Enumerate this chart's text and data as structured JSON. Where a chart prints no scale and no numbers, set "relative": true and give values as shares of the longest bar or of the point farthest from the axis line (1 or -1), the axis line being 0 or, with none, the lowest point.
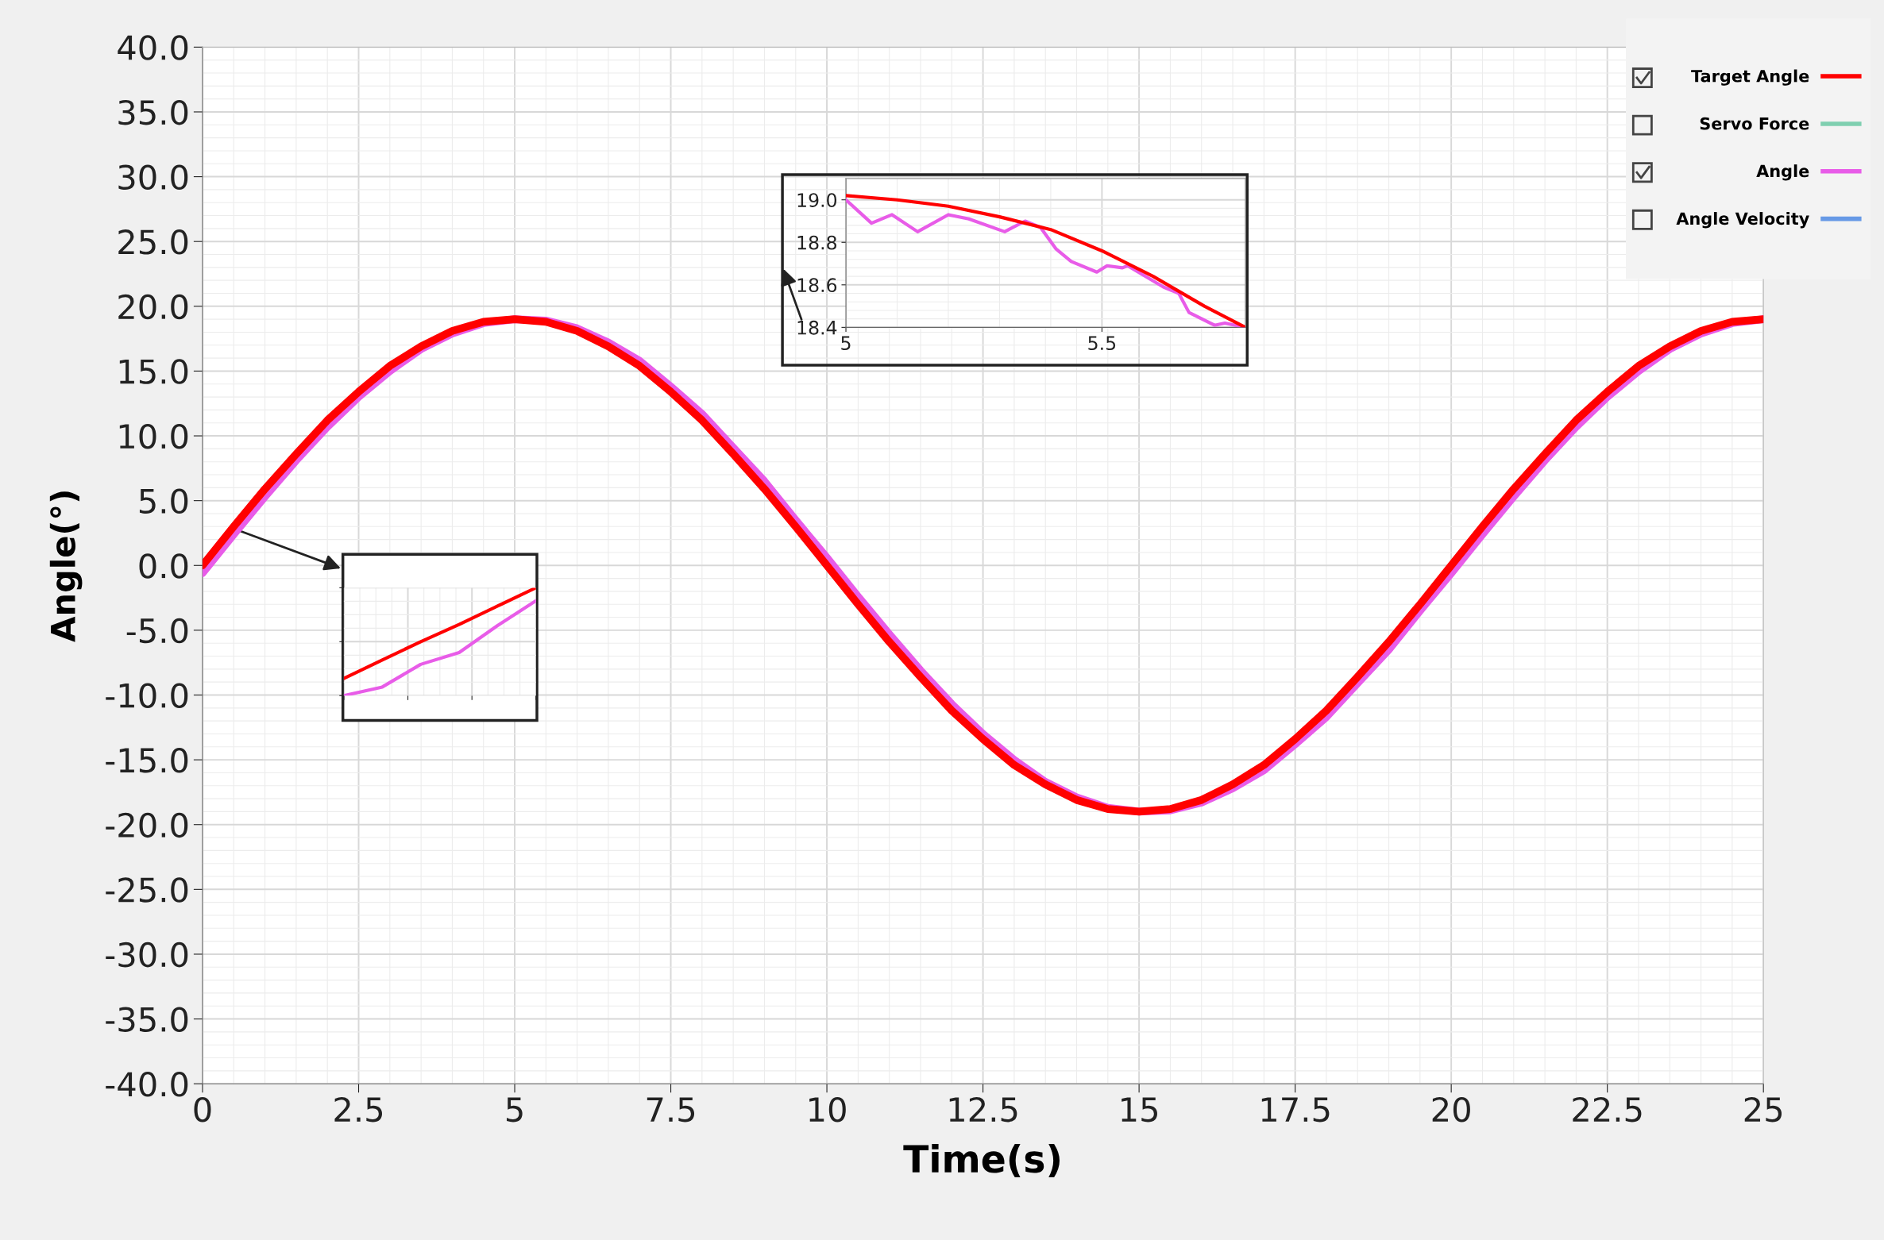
{
  "chart_data": [
    {
      "type": "line",
      "xlabel": "Time(s)",
      "ylabel": "Angle(°)",
      "x": [
        0,
        0.5,
        1,
        1.5,
        2,
        2.5,
        3,
        3.5,
        4,
        4.5,
        5,
        5.5,
        6,
        6.5,
        7,
        7.5,
        8,
        8.5,
        9,
        9.5,
        10,
        10.5,
        11,
        11.5,
        12,
        12.5,
        13,
        13.5,
        14,
        14.5,
        15,
        15.5,
        16,
        16.5,
        17,
        17.5,
        18,
        18.5,
        19,
        19.5,
        20,
        20.5,
        21,
        21.5,
        22,
        22.5,
        23,
        23.5,
        24,
        24.5,
        25
      ],
      "series": [
        {
          "name": "Target Angle",
          "color": "#ff0000",
          "values": [
            0,
            3.0,
            5.9,
            8.6,
            11.2,
            13.4,
            15.4,
            16.9,
            18.1,
            18.8,
            19.0,
            18.8,
            18.1,
            16.9,
            15.4,
            13.4,
            11.2,
            8.6,
            5.9,
            3.0,
            0,
            -3.0,
            -5.9,
            -8.6,
            -11.2,
            -13.4,
            -15.4,
            -16.9,
            -18.1,
            -18.8,
            -19.0,
            -18.8,
            -18.1,
            -16.9,
            -15.4,
            -13.4,
            -11.2,
            -8.6,
            -5.9,
            -3.0,
            0,
            3.0,
            5.9,
            8.6,
            11.2,
            13.4,
            15.4,
            16.9,
            18.1,
            18.8,
            19.0
          ]
        },
        {
          "name": "Servo Force",
          "color": "#7fcfb0",
          "values": [
            null,
            null,
            null,
            null,
            null,
            null,
            null,
            null,
            null,
            null,
            null,
            null,
            null,
            null,
            null,
            null,
            null,
            null,
            null,
            null,
            null,
            null,
            null,
            null,
            null,
            null,
            null,
            null,
            null,
            null,
            null,
            null,
            null,
            null,
            null,
            null,
            null,
            null,
            null,
            null,
            null,
            null,
            null,
            null,
            null,
            null,
            null,
            null,
            null,
            null,
            null
          ]
        },
        {
          "name": "Angle",
          "color": "#e85ce8",
          "values": [
            -0.6,
            2.4,
            5.3,
            8.1,
            10.7,
            13.0,
            15.0,
            16.7,
            17.9,
            18.7,
            19.0,
            18.9,
            18.3,
            17.2,
            15.8,
            13.8,
            11.7,
            9.1,
            6.5,
            3.5,
            0.6,
            -2.4,
            -5.3,
            -8.1,
            -10.7,
            -13.0,
            -15.0,
            -16.7,
            -17.9,
            -18.7,
            -19.0,
            -18.9,
            -18.3,
            -17.2,
            -15.8,
            -13.8,
            -11.7,
            -9.1,
            -6.5,
            -3.5,
            -0.6,
            2.4,
            5.3,
            8.1,
            10.7,
            13.0,
            15.0,
            16.7,
            17.9,
            18.7,
            19.0
          ]
        },
        {
          "name": "Angle Velocity",
          "color": "#6699e6",
          "values": [
            null,
            null,
            null,
            null,
            null,
            null,
            null,
            null,
            null,
            null,
            null,
            null,
            null,
            null,
            null,
            null,
            null,
            null,
            null,
            null,
            null,
            null,
            null,
            null,
            null,
            null,
            null,
            null,
            null,
            null,
            null,
            null,
            null,
            null,
            null,
            null,
            null,
            null,
            null,
            null,
            null,
            null,
            null,
            null,
            null,
            null,
            null,
            null,
            null,
            null,
            null
          ]
        }
      ],
      "xlim": [
        0,
        25
      ],
      "xticks": [
        0,
        2.5,
        5,
        7.5,
        10,
        12.5,
        15,
        17.5,
        20,
        22.5,
        25
      ],
      "ylim": [
        -40,
        40
      ],
      "yticks": [
        {
          "value": 40,
          "label": "40.0"
        },
        {
          "value": 35,
          "label": "35.0"
        },
        {
          "value": 30,
          "label": "30.0"
        },
        {
          "value": 25,
          "label": "25.0"
        },
        {
          "value": 20,
          "label": "20.0"
        },
        {
          "value": 15,
          "label": "15.0"
        },
        {
          "value": 10,
          "label": "10.0"
        },
        {
          "value": 5,
          "label": "5.0"
        },
        {
          "value": 0,
          "label": "0.0"
        },
        {
          "value": -5,
          "label": "-5.0"
        },
        {
          "value": -10,
          "label": "-10.0"
        },
        {
          "value": -15,
          "label": "-15.0"
        },
        {
          "value": -20,
          "label": "-20.0"
        },
        {
          "value": -25,
          "label": "-25.0"
        },
        {
          "value": -30,
          "label": "-30.0"
        },
        {
          "value": -35,
          "label": "-35.0"
        },
        {
          "value": -40,
          "label": "-40.0"
        }
      ],
      "grid": true,
      "legend": "top right",
      "line_style": "solid"
    },
    {
      "type": "line",
      "series": [
        {
          "color": "#ff0000",
          "x": [
            5,
            5.1,
            5.2,
            5.3,
            5.4,
            5.5,
            5.6,
            5.7,
            5.78
          ],
          "values": [
            19.02,
            19.0,
            18.97,
            18.92,
            18.86,
            18.76,
            18.64,
            18.5,
            18.4
          ]
        },
        {
          "color": "#e85ce8",
          "x": [
            5,
            5.05,
            5.09,
            5.14,
            5.2,
            5.24,
            5.31,
            5.35,
            5.38,
            5.41,
            5.44,
            5.49,
            5.51,
            5.54,
            5.55,
            5.62,
            5.65,
            5.67,
            5.72,
            5.74,
            5.78
          ],
          "values": [
            19.0,
            18.89,
            18.93,
            18.85,
            18.93,
            18.91,
            18.85,
            18.9,
            18.87,
            18.77,
            18.71,
            18.66,
            18.69,
            18.68,
            18.69,
            18.59,
            18.56,
            18.47,
            18.41,
            18.42,
            18.4
          ]
        }
      ],
      "xlim": [
        5,
        5.78
      ],
      "xticks": [
        5,
        5.5
      ],
      "ylim": [
        18.4,
        19.1
      ],
      "yticks": [
        {
          "value": 18.4,
          "label": "18.4"
        },
        {
          "value": 18.6,
          "label": "18.6"
        },
        {
          "value": 18.8,
          "label": "18.8"
        },
        {
          "value": 19.0,
          "label": "19.0"
        }
      ],
      "grid": true,
      "line_style": "solid"
    },
    {
      "type": "line",
      "relative": true,
      "categories": [
        null,
        null,
        null,
        null,
        null,
        null
      ],
      "series": [
        {
          "color": "#ff0000",
          "values": [
            0.16,
            0.33,
            0.5,
            0.66,
            0.83,
            1.0
          ]
        },
        {
          "color": "#e85ce8",
          "values": [
            0,
            0.08,
            0.29,
            0.4,
            0.65,
            0.88
          ]
        }
      ],
      "grid": true,
      "tick_labels": false,
      "line_style": "solid"
    }
  ]
}
